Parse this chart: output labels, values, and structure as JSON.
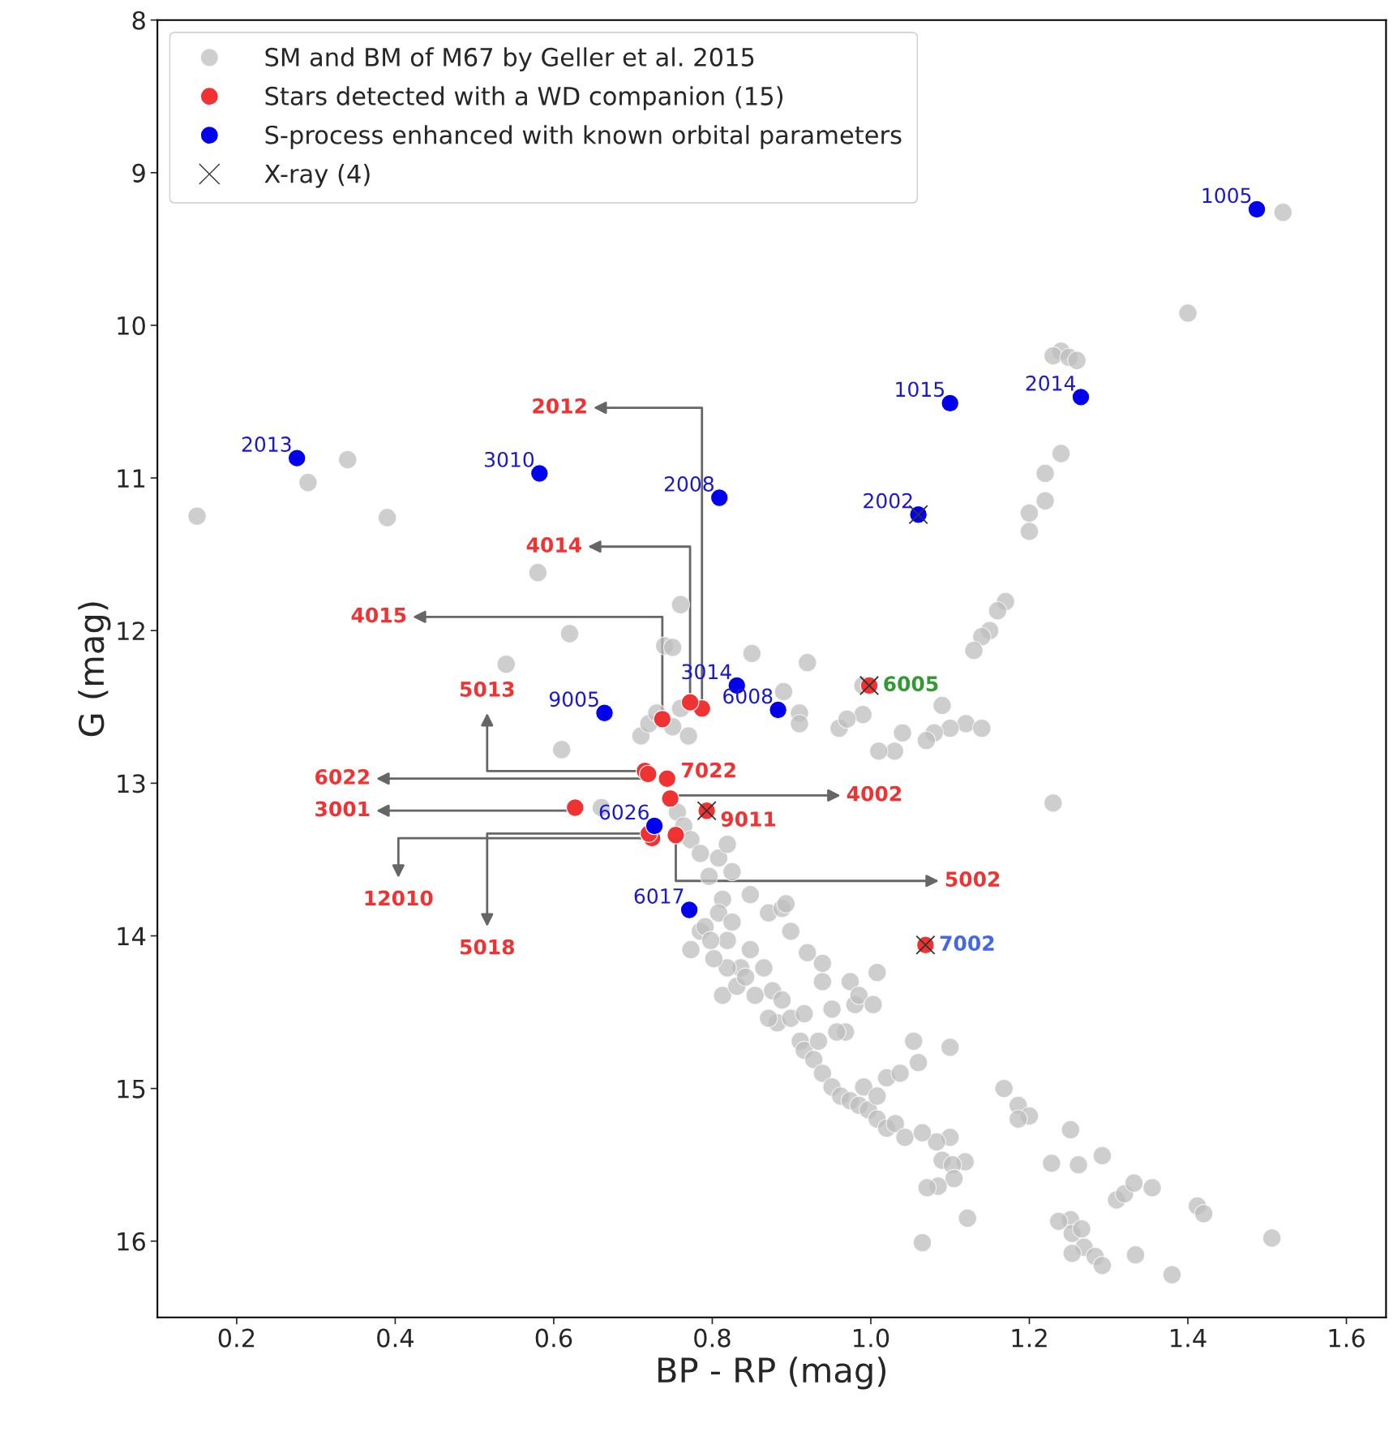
{
  "chart_data": {
    "type": "scatter",
    "xlabel": "BP - RP (mag)",
    "ylabel": "G (mag)",
    "xlim": [
      0.1,
      1.65
    ],
    "ylim": [
      16.5,
      8
    ],
    "xticks": [
      0.2,
      0.4,
      0.6,
      0.8,
      {
        "value": 1.0,
        "label": "1.0"
      },
      1.2,
      1.4,
      1.6
    ],
    "yticks": [
      8,
      9,
      10,
      11,
      12,
      13,
      14,
      15,
      16
    ],
    "grid": false,
    "legend": "top left",
    "series": [
      {
        "name": "SM and BM of M67 by Geller et al. 2015",
        "color": "#bdbdbd",
        "marker": "circle",
        "x": [
          1.52,
          1.4,
          1.24,
          1.23,
          1.25,
          1.26,
          1.24,
          1.22,
          1.22,
          1.2,
          1.2,
          1.17,
          1.16,
          1.15,
          1.14,
          1.13,
          1.09,
          1.12,
          1.1,
          1.08,
          1.07,
          1.14,
          1.04,
          1.03,
          1.01,
          0.99,
          0.96,
          0.97,
          0.99,
          0.92,
          0.85,
          0.89,
          0.91,
          0.91,
          1.23,
          0.76,
          0.74,
          0.75,
          0.62,
          0.58,
          0.54,
          0.61,
          0.39,
          0.34,
          0.29,
          0.15,
          0.71,
          0.72,
          0.73,
          0.76,
          0.77,
          0.75,
          0.66,
          0.756,
          0.764,
          0.773,
          0.785,
          0.796,
          0.808,
          0.819,
          0.813,
          0.825,
          0.808,
          0.785,
          0.773,
          0.791,
          0.819,
          0.825,
          0.848,
          0.871,
          0.888,
          0.893,
          0.899,
          0.848,
          0.836,
          0.819,
          0.813,
          0.831,
          0.842,
          0.865,
          0.876,
          0.888,
          0.882,
          0.899,
          0.911,
          0.916,
          0.928,
          0.939,
          0.951,
          0.962,
          0.974,
          0.985,
          0.997,
          1.008,
          1.02,
          1.031,
          1.043,
          0.991,
          1.02,
          1.037,
          1.008,
          0.968,
          0.98,
          0.974,
          0.985,
          1.003,
          1.008,
          0.939,
          0.939,
          0.951,
          0.957,
          0.934,
          0.916,
          0.854,
          0.871,
          0.92,
          0.798,
          0.802,
          1.054,
          1.06,
          1.1,
          1.168,
          1.186,
          1.2,
          1.186,
          1.252,
          1.292,
          1.228,
          1.262,
          1.1,
          1.119,
          1.09,
          1.103,
          1.105,
          1.085,
          1.071,
          1.083,
          1.065,
          1.122,
          1.065,
          1.252,
          1.237,
          1.254,
          1.266,
          1.269,
          1.254,
          1.283,
          1.292,
          1.31,
          1.32,
          1.332,
          1.355,
          1.334,
          1.38,
          1.412,
          1.42,
          1.506
        ],
        "values": [
          9.26,
          9.92,
          10.17,
          10.2,
          10.21,
          10.23,
          10.84,
          10.97,
          11.15,
          11.23,
          11.35,
          11.81,
          11.87,
          12.0,
          12.04,
          12.13,
          12.49,
          12.61,
          12.64,
          12.67,
          12.72,
          12.64,
          12.67,
          12.79,
          12.79,
          12.55,
          12.64,
          12.58,
          12.36,
          12.21,
          12.15,
          12.4,
          12.54,
          12.61,
          13.13,
          11.83,
          12.1,
          12.11,
          12.02,
          11.62,
          12.22,
          12.78,
          11.26,
          10.88,
          11.03,
          11.25,
          12.69,
          12.61,
          12.54,
          12.51,
          12.69,
          12.63,
          13.16,
          13.19,
          13.28,
          13.37,
          13.46,
          13.61,
          13.49,
          13.4,
          13.76,
          13.58,
          13.85,
          13.97,
          14.09,
          13.94,
          14.03,
          13.91,
          13.73,
          13.85,
          13.82,
          13.79,
          13.97,
          14.09,
          14.21,
          14.21,
          14.39,
          14.33,
          14.27,
          14.21,
          14.36,
          14.42,
          14.57,
          14.54,
          14.69,
          14.75,
          14.81,
          14.9,
          14.99,
          15.05,
          15.08,
          15.11,
          15.14,
          15.2,
          15.26,
          15.23,
          15.32,
          14.99,
          14.93,
          14.9,
          15.05,
          14.63,
          14.45,
          14.3,
          14.39,
          14.45,
          14.24,
          14.18,
          14.3,
          14.48,
          14.63,
          14.69,
          14.51,
          14.39,
          14.54,
          14.11,
          14.03,
          14.15,
          14.69,
          14.83,
          14.73,
          15.0,
          15.11,
          15.18,
          15.2,
          15.27,
          15.44,
          15.49,
          15.5,
          15.32,
          15.48,
          15.47,
          15.5,
          15.59,
          15.64,
          15.65,
          15.35,
          15.29,
          15.85,
          16.01,
          15.86,
          15.87,
          15.95,
          15.92,
          16.04,
          16.08,
          16.1,
          16.16,
          15.73,
          15.69,
          15.62,
          15.65,
          16.09,
          16.22,
          15.77,
          15.82,
          15.98
        ]
      },
      {
        "name": "Stars detected with a WD companion (15)",
        "color": "#f03232",
        "marker": "circle",
        "x": [
          0.787,
          0.772,
          0.737,
          0.715,
          0.719,
          0.743,
          0.747,
          0.627,
          0.724,
          0.72,
          0.754,
          0.793,
          0.998,
          1.069
        ],
        "values": [
          12.51,
          12.47,
          12.58,
          12.92,
          12.94,
          12.97,
          13.1,
          13.16,
          13.36,
          13.33,
          13.34,
          13.18,
          12.36,
          14.06
        ]
      },
      {
        "name": "S-process enhanced with known orbital parameters",
        "color": "#0000ee",
        "marker": "circle",
        "x": [
          1.487,
          1.1,
          1.265,
          0.276,
          0.582,
          0.809,
          1.06,
          0.831,
          0.883,
          0.664,
          0.727,
          0.771
        ],
        "values": [
          9.24,
          10.51,
          10.47,
          10.87,
          10.97,
          11.13,
          11.24,
          12.36,
          12.52,
          12.54,
          13.28,
          13.83
        ]
      },
      {
        "name": "X-ray (4)",
        "color": "#333333",
        "marker": "cross",
        "x": [
          1.06,
          0.998,
          1.069,
          0.793
        ],
        "values": [
          11.24,
          12.36,
          14.06,
          13.18
        ]
      }
    ],
    "annotations": [
      {
        "text": "1005",
        "x": 1.487,
        "y": 9.24
      },
      {
        "text": "1015",
        "x": 1.1,
        "y": 10.51
      },
      {
        "text": "2014",
        "x": 1.265,
        "y": 10.47
      },
      {
        "text": "2013",
        "x": 0.276,
        "y": 10.87
      },
      {
        "text": "3010",
        "x": 0.582,
        "y": 10.97
      },
      {
        "text": "2008",
        "x": 0.809,
        "y": 11.13
      },
      {
        "text": "2002",
        "x": 1.06,
        "y": 11.24
      },
      {
        "text": "3014",
        "x": 0.831,
        "y": 12.36
      },
      {
        "text": "6008",
        "x": 0.883,
        "y": 12.52
      },
      {
        "text": "9005",
        "x": 0.664,
        "y": 12.54
      },
      {
        "text": "6026",
        "x": 0.727,
        "y": 13.28
      },
      {
        "text": "6017",
        "x": 0.771,
        "y": 13.83
      },
      {
        "text": "2012",
        "x": 0.787,
        "y": 12.51
      },
      {
        "text": "4014",
        "x": 0.772,
        "y": 12.47
      },
      {
        "text": "4015",
        "x": 0.737,
        "y": 12.58
      },
      {
        "text": "5013",
        "x": 0.715,
        "y": 12.92
      },
      {
        "text": "6022",
        "x": 0.719,
        "y": 12.94
      },
      {
        "text": "7022",
        "x": 0.743,
        "y": 12.97
      },
      {
        "text": "4002",
        "x": 0.747,
        "y": 13.1
      },
      {
        "text": "3001",
        "x": 0.627,
        "y": 13.16
      },
      {
        "text": "12010",
        "x": 0.724,
        "y": 13.36
      },
      {
        "text": "5018",
        "x": 0.72,
        "y": 13.33
      },
      {
        "text": "5002",
        "x": 0.754,
        "y": 13.34
      },
      {
        "text": "9011",
        "x": 0.793,
        "y": 13.18
      },
      {
        "text": "6005",
        "x": 0.998,
        "y": 12.36
      },
      {
        "text": "7002",
        "x": 1.069,
        "y": 14.06
      }
    ]
  }
}
